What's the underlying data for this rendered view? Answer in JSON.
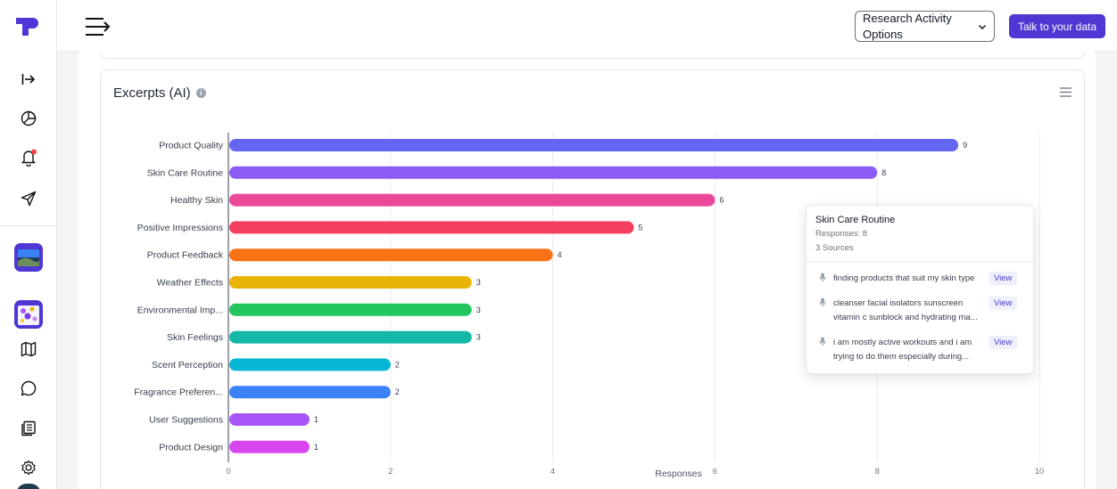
{
  "header": {
    "select_value": "Research Activity Options",
    "talk_button": "Talk to your data"
  },
  "sidebar": {
    "icons": [
      "arrow-right-bar-icon",
      "chart-pie-icon",
      "bell-icon",
      "send-icon",
      "map-icon",
      "chat-bubble-icon",
      "document-stack-icon",
      "settings-gear-icon"
    ],
    "notification_dot_color": "#ef4444",
    "brand_color": "#4f37d4"
  },
  "card": {
    "title": "Excerpts (AI)",
    "info_icon": "i"
  },
  "chart_data": {
    "type": "bar",
    "orientation": "horizontal",
    "categories": [
      "Product Quality",
      "Skin Care Routine",
      "Healthy Skin",
      "Positive Impressions",
      "Product Feedback",
      "Weather Effects",
      "Environmental Imp...",
      "Skin Feelings",
      "Scent Perception",
      "Fragrance Preferen...",
      "User Suggestions",
      "Product Design"
    ],
    "values": [
      9,
      8,
      6,
      5,
      4,
      3,
      3,
      3,
      2,
      2,
      1,
      1
    ],
    "colors": [
      "#6366f1",
      "#8b5cf6",
      "#ec4899",
      "#f43f5e",
      "#f97316",
      "#eab308",
      "#22c55e",
      "#14b8a6",
      "#06b6d4",
      "#3b82f6",
      "#a855f7",
      "#d946ef"
    ],
    "xticks": [
      "0",
      "2",
      "4",
      "6",
      "8",
      "10"
    ],
    "xlim": [
      0,
      10
    ],
    "xlabel": "Responses",
    "grid": true
  },
  "tooltip": {
    "title": "Skin Care Routine",
    "responses": "Responses: 8",
    "sources": "3 Sources",
    "items": [
      {
        "text1": "finding products that suit my skin type",
        "text2": "",
        "view": "View"
      },
      {
        "text1": "cleanser facial isolators sunscreen",
        "text2": "vitamin c sunblock and hydrating ma...",
        "view": "View"
      },
      {
        "text1": "i am mostly active workouts and i am",
        "text2": "trying to do them especially during...",
        "view": "View"
      }
    ]
  }
}
